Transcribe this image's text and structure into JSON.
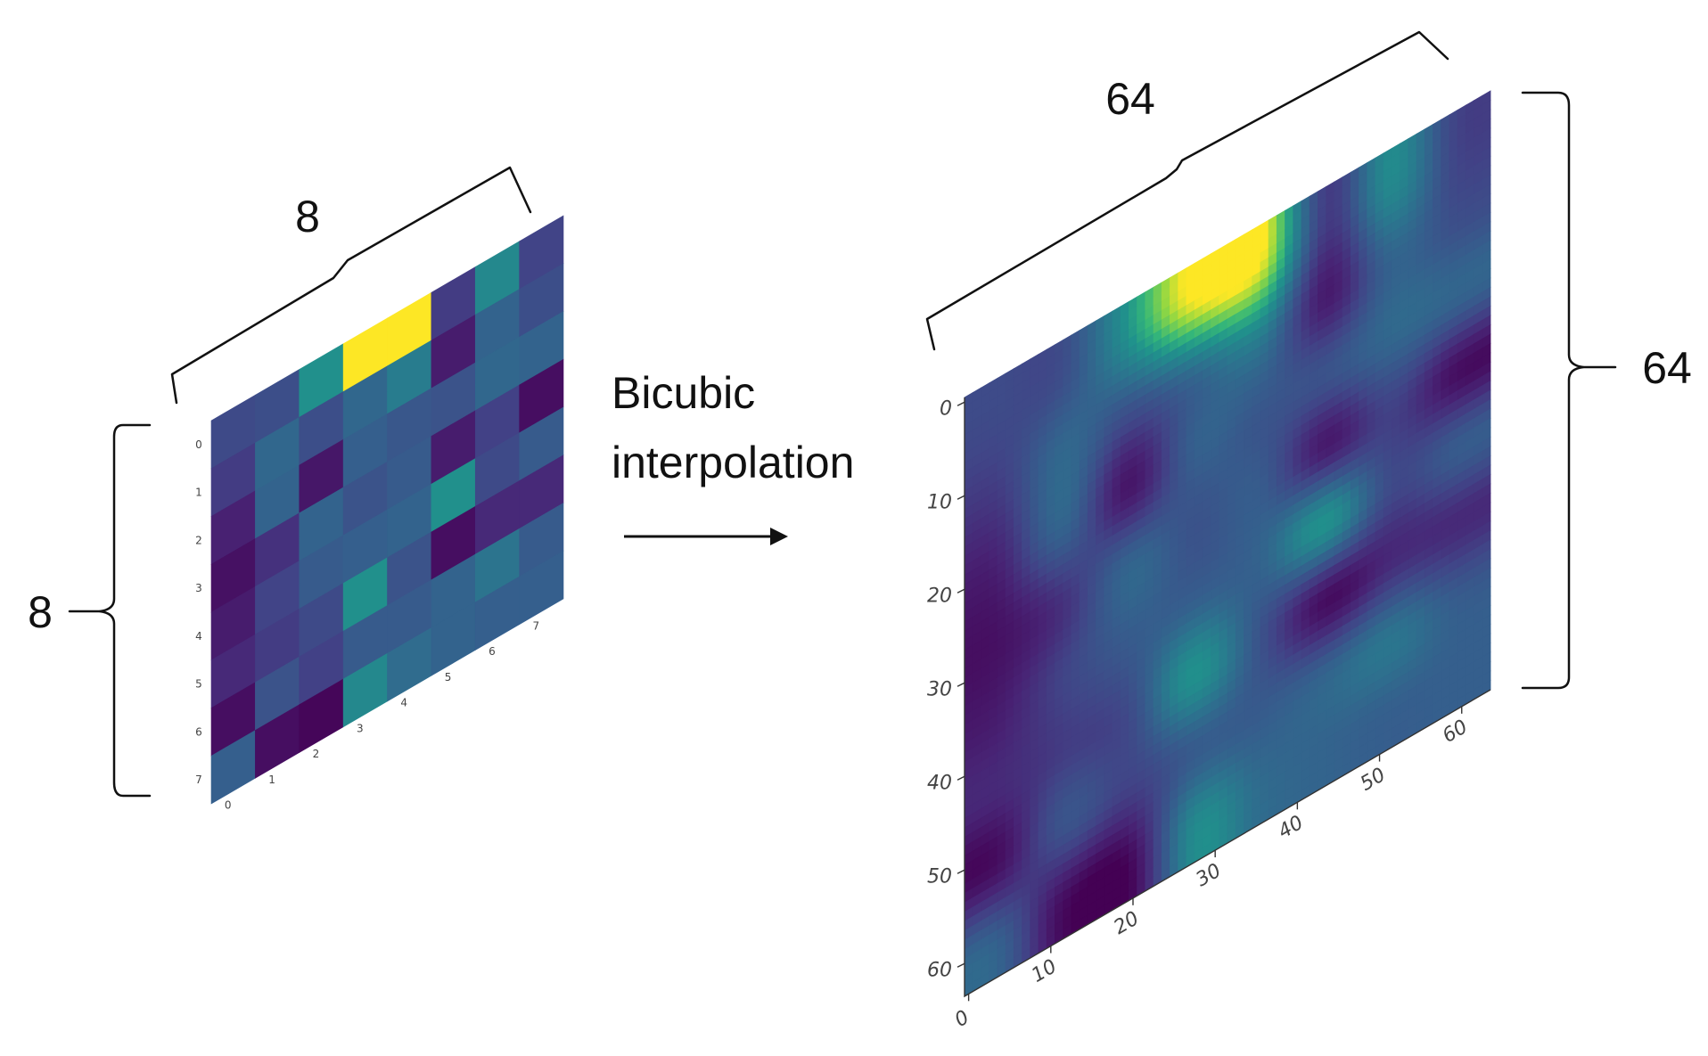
{
  "caption": {
    "line1": "Bicubic",
    "line2": "interpolation"
  },
  "small_grid": {
    "width_label": "8",
    "height_label": "8",
    "row_ticks": [
      "0",
      "1",
      "2",
      "3",
      "4",
      "5",
      "6",
      "7"
    ],
    "col_ticks": [
      "0",
      "1",
      "2",
      "3",
      "4",
      "5",
      "6",
      "7"
    ],
    "colormap": "viridis",
    "values": [
      [
        0.28,
        0.3,
        0.62,
        1.0,
        1.0,
        0.22,
        0.58,
        0.25
      ],
      [
        0.22,
        0.42,
        0.3,
        0.42,
        0.52,
        0.1,
        0.4,
        0.3
      ],
      [
        0.12,
        0.4,
        0.08,
        0.38,
        0.34,
        0.32,
        0.42,
        0.4
      ],
      [
        0.06,
        0.18,
        0.4,
        0.32,
        0.36,
        0.1,
        0.24,
        0.05
      ],
      [
        0.1,
        0.25,
        0.36,
        0.38,
        0.4,
        0.62,
        0.28,
        0.36
      ],
      [
        0.15,
        0.22,
        0.28,
        0.62,
        0.32,
        0.05,
        0.15,
        0.15
      ],
      [
        0.05,
        0.32,
        0.24,
        0.36,
        0.36,
        0.4,
        0.48,
        0.36
      ],
      [
        0.38,
        0.05,
        0.02,
        0.58,
        0.44,
        0.4,
        0.38,
        0.38
      ]
    ]
  },
  "large_grid": {
    "width_label": "64",
    "height_label": "64",
    "row_ticks": [
      "0",
      "10",
      "20",
      "30",
      "40",
      "50",
      "60"
    ],
    "col_ticks": [
      "0",
      "10",
      "20",
      "30",
      "40",
      "50",
      "60"
    ],
    "size": 64,
    "colormap": "viridis"
  }
}
